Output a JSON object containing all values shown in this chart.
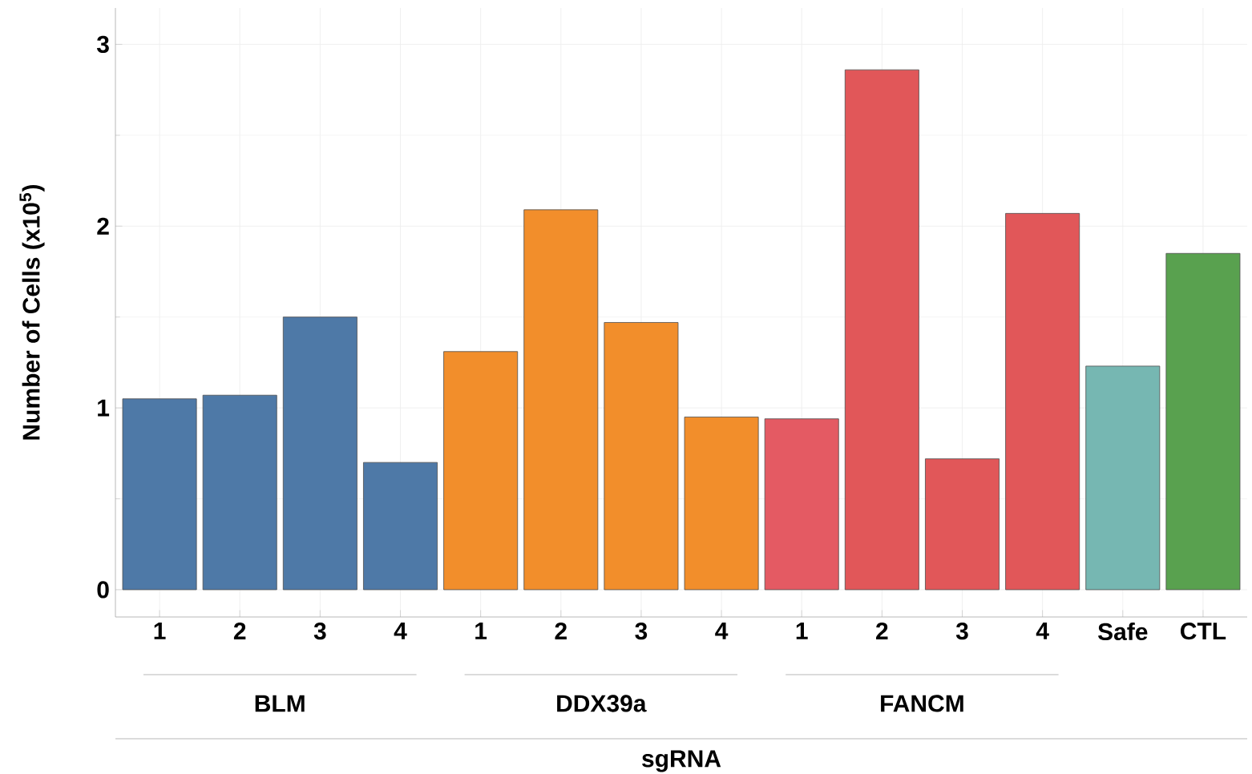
{
  "chart_data": {
    "type": "bar",
    "xlabel": "sgRNA",
    "ylabel": "Number of Cells (x10$^{5}$)",
    "categories": [
      "1",
      "2",
      "3",
      "4",
      "1",
      "2",
      "3",
      "4",
      "1",
      "2",
      "3",
      "4",
      "Safe",
      "CTL"
    ],
    "values": [
      1.05,
      1.07,
      1.5,
      0.7,
      1.31,
      2.09,
      1.47,
      0.95,
      0.94,
      2.86,
      0.72,
      2.07,
      1.23,
      1.85
    ],
    "colors": [
      "#4e79a7",
      "#4e79a7",
      "#4e79a7",
      "#4e79a7",
      "#f28e2b",
      "#f28e2b",
      "#f28e2b",
      "#f28e2b",
      "#e45a63",
      "#e15759",
      "#e15759",
      "#e15759",
      "#76b7b2",
      "#59a14f"
    ],
    "annotations": [
      "BLM",
      "DDX39a",
      "FANCM"
    ],
    "ylim": [
      -0.15,
      3.2
    ],
    "yticks": [
      0,
      1,
      2,
      3
    ],
    "grid": true
  }
}
